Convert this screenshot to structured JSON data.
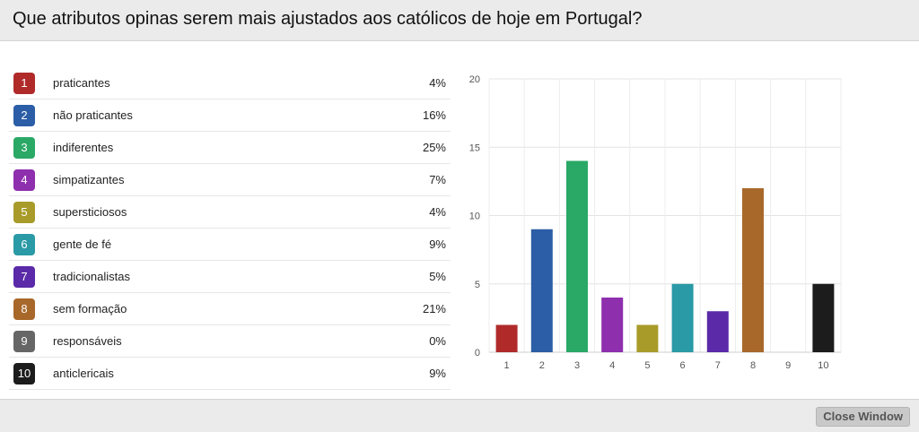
{
  "header": {
    "title": "Que atributos opinas serem mais ajustados aos católicos de hoje em Portugal?"
  },
  "legend": {
    "items": [
      {
        "num": "1",
        "label": "praticantes",
        "pct": "4%",
        "color": "#b02a2a"
      },
      {
        "num": "2",
        "label": "não praticantes",
        "pct": "16%",
        "color": "#2b5ea6"
      },
      {
        "num": "3",
        "label": "indiferentes",
        "pct": "25%",
        "color": "#2aa866"
      },
      {
        "num": "4",
        "label": "simpatizantes",
        "pct": "7%",
        "color": "#8e2fae"
      },
      {
        "num": "5",
        "label": "supersticiosos",
        "pct": "4%",
        "color": "#a89b2a"
      },
      {
        "num": "6",
        "label": "gente de fé",
        "pct": "9%",
        "color": "#2a9aa6"
      },
      {
        "num": "7",
        "label": "tradicionalistas",
        "pct": "5%",
        "color": "#5a2aa8"
      },
      {
        "num": "8",
        "label": "sem formação",
        "pct": "21%",
        "color": "#a8682a"
      },
      {
        "num": "9",
        "label": "responsáveis",
        "pct": "0%",
        "color": "#666666"
      },
      {
        "num": "10",
        "label": "anticlericais",
        "pct": "9%",
        "color": "#1c1c1c"
      }
    ]
  },
  "chart_data": {
    "type": "bar",
    "categories": [
      "1",
      "2",
      "3",
      "4",
      "5",
      "6",
      "7",
      "8",
      "9",
      "10"
    ],
    "values": [
      2,
      9,
      14,
      4,
      2,
      5,
      3,
      12,
      0,
      5
    ],
    "colors": [
      "#b02a2a",
      "#2b5ea6",
      "#2aa866",
      "#8e2fae",
      "#a89b2a",
      "#2a9aa6",
      "#5a2aa8",
      "#a8682a",
      "#666666",
      "#1c1c1c"
    ],
    "ylim": [
      0,
      20
    ],
    "yticks": [
      0,
      5,
      10,
      15,
      20
    ],
    "grid": true
  },
  "footer": {
    "close_label": "Close Window"
  }
}
